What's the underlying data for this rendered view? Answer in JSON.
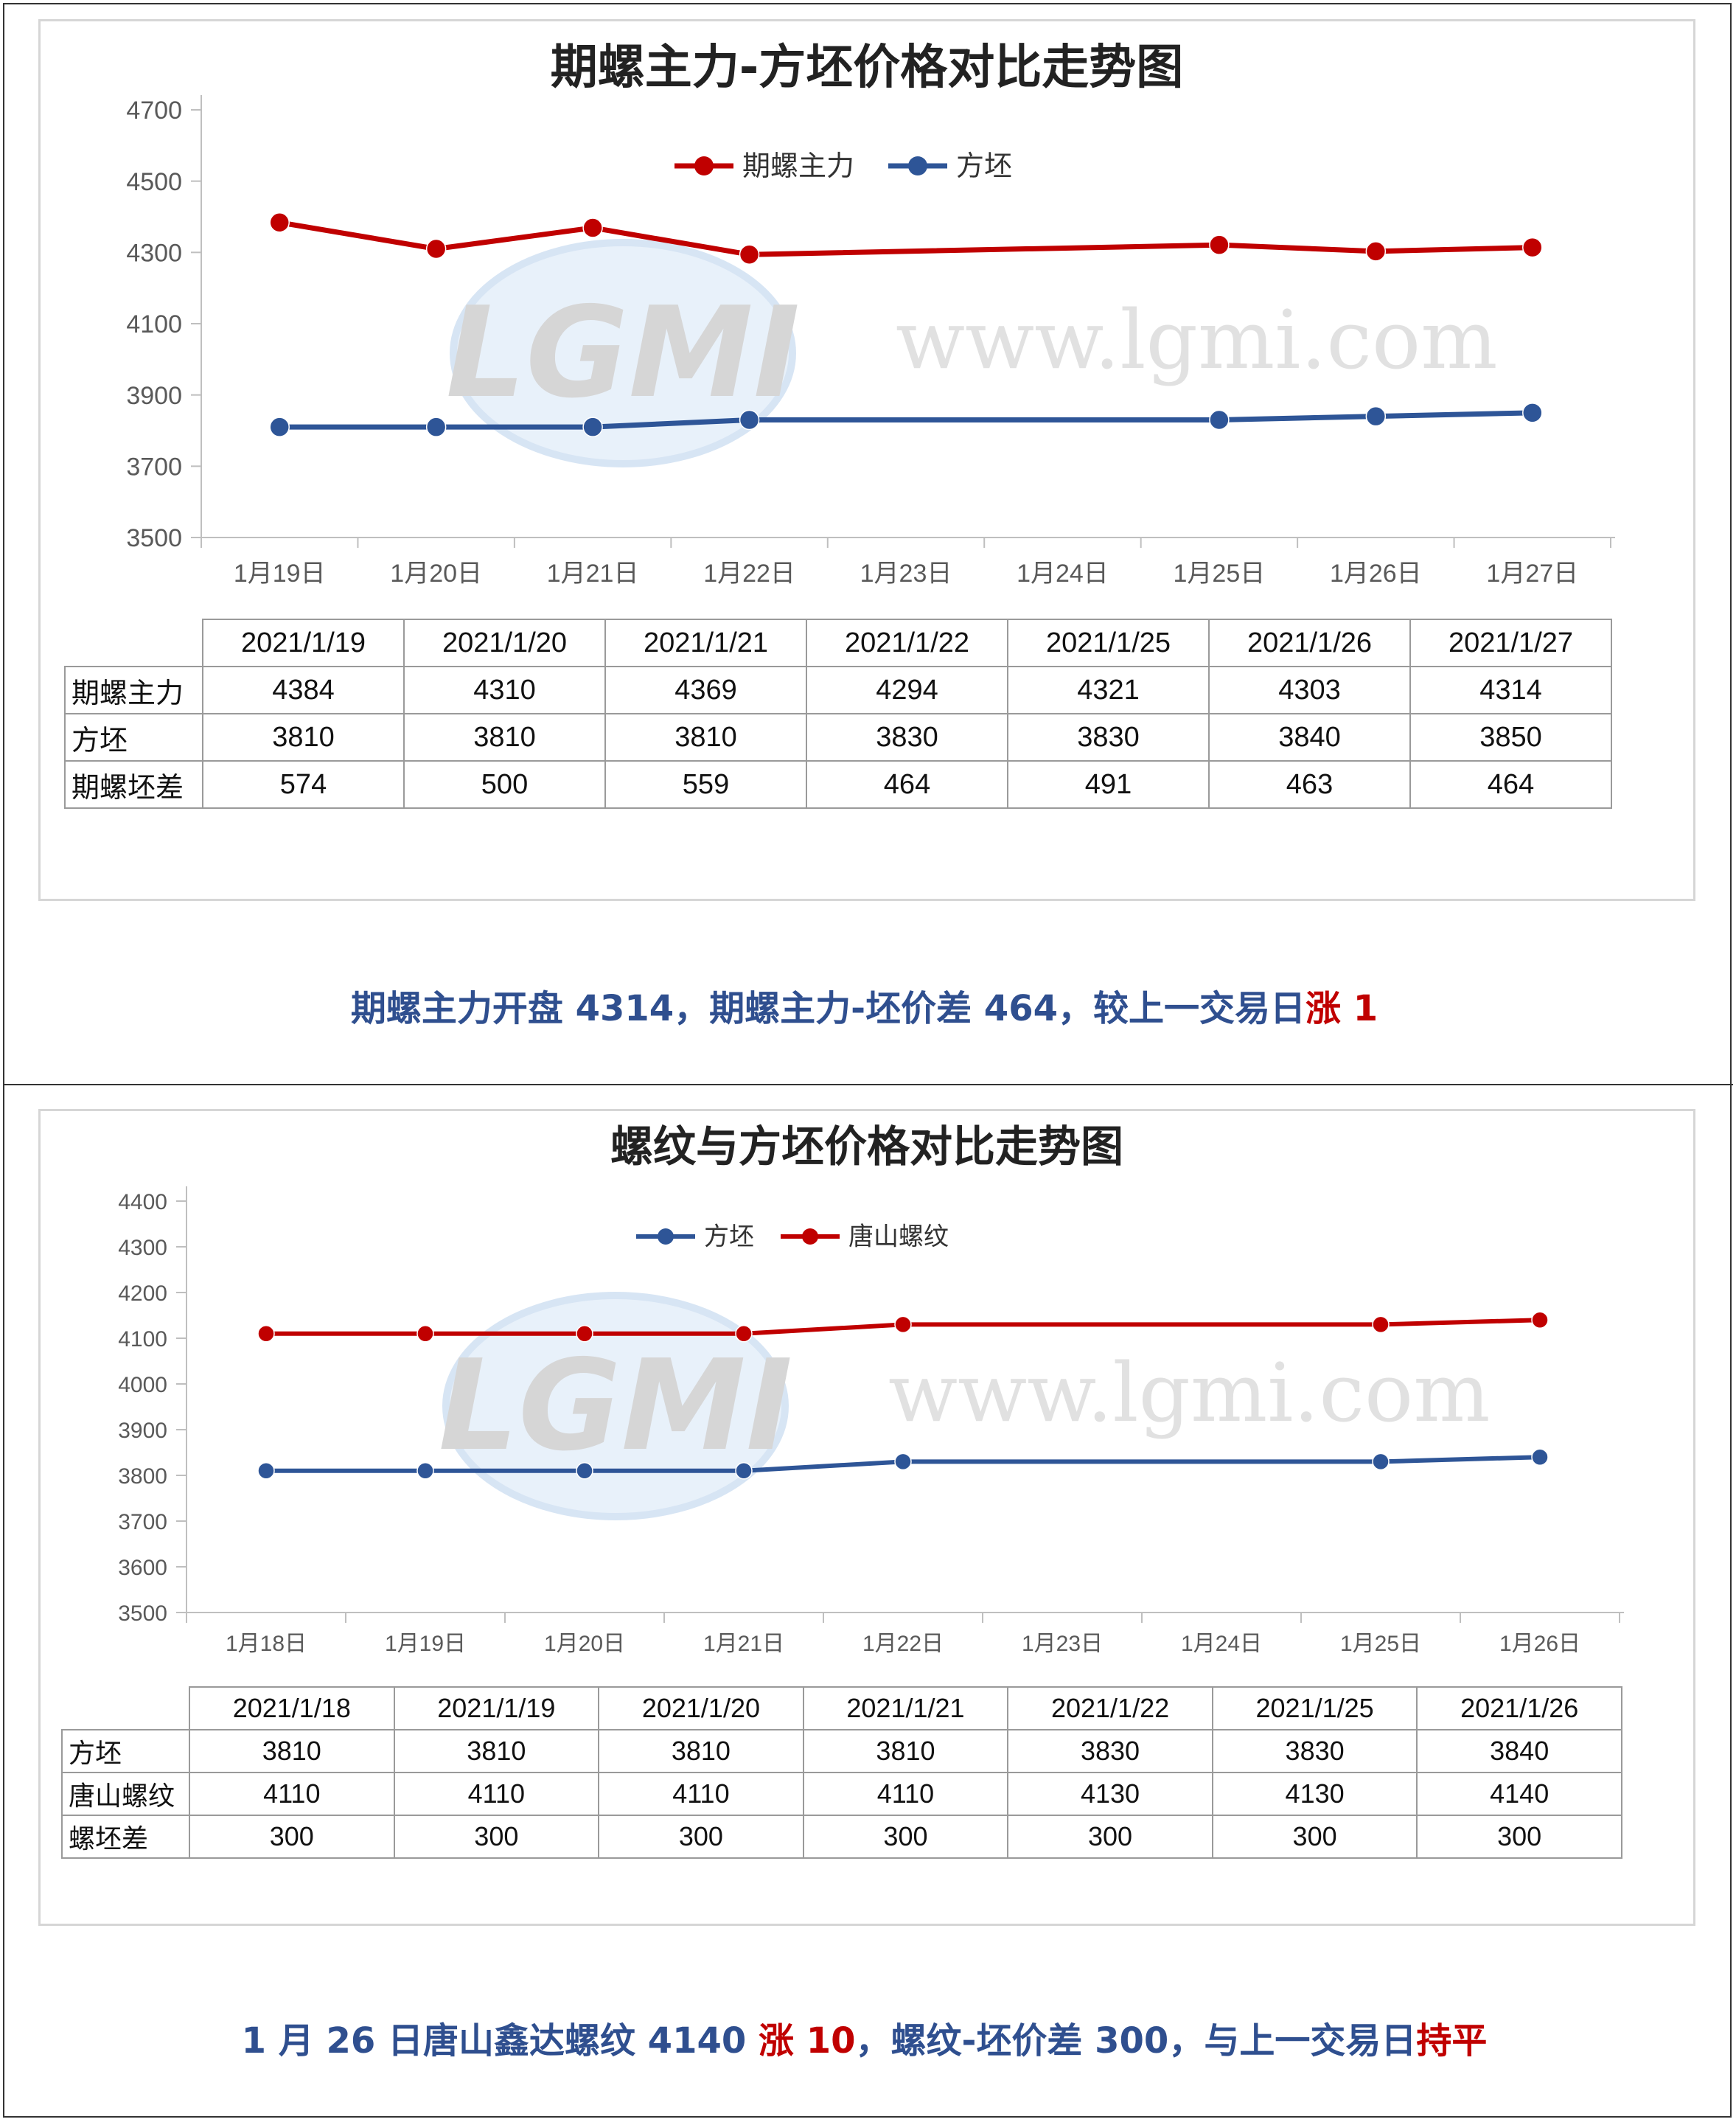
{
  "panels": [
    {
      "chart_data": {
        "type": "line",
        "title": "期螺主力-方坯价格对比走势图",
        "categories": [
          "1月19日",
          "1月20日",
          "1月21日",
          "1月22日",
          "1月23日",
          "1月24日",
          "1月25日",
          "1月26日",
          "1月27日"
        ],
        "ylim": [
          3500,
          4700
        ],
        "yticks": [
          4700,
          4500,
          4300,
          4100,
          3900,
          3700,
          3500
        ],
        "series": [
          {
            "name": "期螺主力",
            "color": "#c00000",
            "values": [
              4384,
              4310,
              4369,
              4294,
              null,
              null,
              4321,
              4303,
              4314
            ]
          },
          {
            "name": "方坯",
            "color": "#2e5597",
            "values": [
              3810,
              3810,
              3810,
              3830,
              null,
              null,
              3830,
              3840,
              3850
            ]
          }
        ],
        "grid": false,
        "legend_position": "top"
      },
      "watermark": {
        "logo": "LGMI",
        "url": "www.lgmi.com"
      },
      "table": {
        "headers": [
          "2021/1/19",
          "2021/1/20",
          "2021/1/21",
          "2021/1/22",
          "2021/1/25",
          "2021/1/26",
          "2021/1/27"
        ],
        "rows": [
          {
            "label": "期螺主力",
            "cells": [
              "4384",
              "4310",
              "4369",
              "4294",
              "4321",
              "4303",
              "4314"
            ]
          },
          {
            "label": "方坯",
            "cells": [
              "3810",
              "3810",
              "3810",
              "3830",
              "3830",
              "3840",
              "3850"
            ]
          },
          {
            "label": "期螺坯差",
            "cells": [
              "574",
              "500",
              "559",
              "464",
              "491",
              "463",
              "464"
            ]
          }
        ]
      },
      "summary": [
        {
          "text": "期螺主力开盘 4314，期螺主力-坯价差 464，较上一交易日",
          "red": false
        },
        {
          "text": "涨 1",
          "red": true
        }
      ]
    },
    {
      "chart_data": {
        "type": "line",
        "title": "螺纹与方坯价格对比走势图",
        "categories": [
          "1月18日",
          "1月19日",
          "1月20日",
          "1月21日",
          "1月22日",
          "1月23日",
          "1月24日",
          "1月25日",
          "1月26日"
        ],
        "ylim": [
          3500,
          4400
        ],
        "yticks": [
          4400,
          4300,
          4200,
          4100,
          4000,
          3900,
          3800,
          3700,
          3600,
          3500
        ],
        "series": [
          {
            "name": "方坯",
            "color": "#2e5597",
            "values": [
              3810,
              3810,
              3810,
              3810,
              3830,
              null,
              null,
              3830,
              3840
            ]
          },
          {
            "name": "唐山螺纹",
            "color": "#c00000",
            "values": [
              4110,
              4110,
              4110,
              4110,
              4130,
              null,
              null,
              4130,
              4140
            ]
          }
        ],
        "grid": false,
        "legend_position": "top"
      },
      "watermark": {
        "logo": "LGMI",
        "url": "www.lgmi.com"
      },
      "table": {
        "headers": [
          "2021/1/18",
          "2021/1/19",
          "2021/1/20",
          "2021/1/21",
          "2021/1/22",
          "2021/1/25",
          "2021/1/26"
        ],
        "rows": [
          {
            "label": "方坯",
            "cells": [
              "3810",
              "3810",
              "3810",
              "3810",
              "3830",
              "3830",
              "3840"
            ]
          },
          {
            "label": "唐山螺纹",
            "cells": [
              "4110",
              "4110",
              "4110",
              "4110",
              "4130",
              "4130",
              "4140"
            ]
          },
          {
            "label": "螺坯差",
            "cells": [
              "300",
              "300",
              "300",
              "300",
              "300",
              "300",
              "300"
            ]
          }
        ]
      },
      "summary": [
        {
          "text": "1 月 26 日唐山鑫达螺纹 4140 ",
          "red": false
        },
        {
          "text": "涨 10",
          "red": true
        },
        {
          "text": "，螺纹-坯价差 300，与上一交易日",
          "red": false
        },
        {
          "text": "持平",
          "red": true
        }
      ]
    }
  ]
}
